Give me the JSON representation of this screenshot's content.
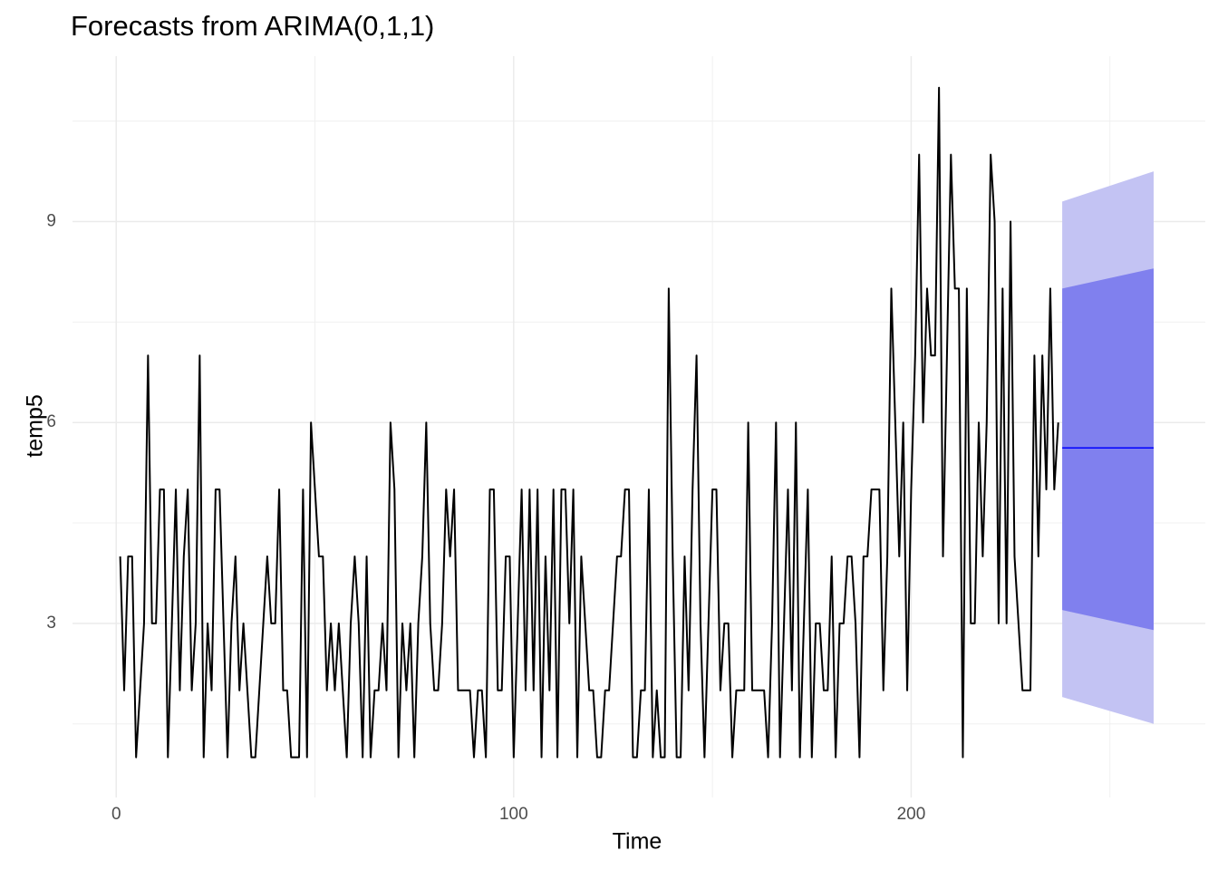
{
  "chart_data": {
    "type": "line",
    "title": "Forecasts from ARIMA(0,1,1)",
    "x_label": "Time",
    "y_label": "temp5",
    "xlim": [
      -11,
      274
    ],
    "ylim": [
      0.4,
      11.47
    ],
    "xticks": [
      0,
      100,
      200
    ],
    "yticks": [
      3,
      6,
      9
    ],
    "minor_xticks": [
      50,
      150,
      250
    ],
    "minor_yticks": [
      1.5,
      4.5,
      7.5,
      10.5
    ],
    "grid": true,
    "series": [
      {
        "color": "#000000",
        "x": [
          1,
          2,
          3,
          4,
          5,
          6,
          7,
          8,
          9,
          10,
          11,
          12,
          13,
          14,
          15,
          16,
          17,
          18,
          19,
          20,
          21,
          22,
          23,
          24,
          25,
          26,
          27,
          28,
          29,
          30,
          31,
          32,
          33,
          34,
          35,
          36,
          37,
          38,
          39,
          40,
          41,
          42,
          43,
          44,
          45,
          46,
          47,
          48,
          49,
          50,
          51,
          52,
          53,
          54,
          55,
          56,
          57,
          58,
          59,
          60,
          61,
          62,
          63,
          64,
          65,
          66,
          67,
          68,
          69,
          70,
          71,
          72,
          73,
          74,
          75,
          76,
          77,
          78,
          79,
          80,
          81,
          82,
          83,
          84,
          85,
          86,
          87,
          88,
          89,
          90,
          91,
          92,
          93,
          94,
          95,
          96,
          97,
          98,
          99,
          100,
          101,
          102,
          103,
          104,
          105,
          106,
          107,
          108,
          109,
          110,
          111,
          112,
          113,
          114,
          115,
          116,
          117,
          118,
          119,
          120,
          121,
          122,
          123,
          124,
          125,
          126,
          127,
          128,
          129,
          130,
          131,
          132,
          133,
          134,
          135,
          136,
          137,
          138,
          139,
          140,
          141,
          142,
          143,
          144,
          145,
          146,
          147,
          148,
          149,
          150,
          151,
          152,
          153,
          154,
          155,
          156,
          157,
          158,
          159,
          160,
          161,
          162,
          163,
          164,
          165,
          166,
          167,
          168,
          169,
          170,
          171,
          172,
          173,
          174,
          175,
          176,
          177,
          178,
          179,
          180,
          181,
          182,
          183,
          184,
          185,
          186,
          187,
          188,
          189,
          190,
          191,
          192,
          193,
          194,
          195,
          196,
          197,
          198,
          199,
          200,
          201,
          202,
          203,
          204,
          205,
          206,
          207,
          208,
          209,
          210,
          211,
          212,
          213,
          214,
          215,
          216,
          217,
          218,
          219,
          220,
          221,
          222,
          223,
          224,
          225,
          226,
          227,
          228,
          229,
          230,
          231,
          232,
          233,
          234,
          235,
          236,
          237
        ],
        "values": [
          4,
          2,
          4,
          4,
          1,
          2,
          3,
          7,
          3,
          3,
          5,
          5,
          1,
          3,
          5,
          2,
          4,
          5,
          2,
          3,
          7,
          1,
          3,
          2,
          5,
          5,
          3,
          1,
          3,
          4,
          2,
          3,
          2,
          1,
          1,
          2,
          3,
          4,
          3,
          3,
          5,
          2,
          2,
          1,
          1,
          1,
          5,
          1,
          6,
          5,
          4,
          4,
          2,
          3,
          2,
          3,
          2,
          1,
          3,
          4,
          3,
          1,
          4,
          1,
          2,
          2,
          3,
          2,
          6,
          5,
          1,
          3,
          2,
          3,
          1,
          3,
          4,
          6,
          3,
          2,
          2,
          3,
          5,
          4,
          5,
          2,
          2,
          2,
          2,
          1,
          2,
          2,
          1,
          5,
          5,
          2,
          2,
          4,
          4,
          1,
          3,
          5,
          2,
          5,
          2,
          5,
          1,
          4,
          2,
          5,
          1,
          5,
          5,
          3,
          5,
          1,
          4,
          3,
          2,
          2,
          1,
          1,
          2,
          2,
          3,
          4,
          4,
          5,
          5,
          1,
          1,
          2,
          2,
          5,
          1,
          2,
          1,
          1,
          8,
          4,
          1,
          1,
          4,
          2,
          5,
          7,
          3,
          1,
          3,
          5,
          5,
          2,
          3,
          3,
          1,
          2,
          2,
          2,
          6,
          2,
          2,
          2,
          2,
          1,
          3,
          6,
          1,
          3,
          5,
          2,
          6,
          1,
          3,
          5,
          1,
          3,
          3,
          2,
          2,
          4,
          1,
          3,
          3,
          4,
          4,
          3,
          1,
          4,
          4,
          5,
          5,
          5,
          2,
          4,
          8,
          6,
          4,
          6,
          2,
          5,
          7,
          10,
          6,
          8,
          7,
          7,
          11,
          4,
          7,
          10,
          8,
          8,
          1,
          8,
          3,
          3,
          6,
          4,
          6,
          10,
          9,
          3,
          8,
          3,
          9,
          4,
          3,
          2,
          2,
          2,
          7,
          4,
          7,
          5,
          8,
          5,
          6
        ]
      }
    ],
    "forecast": {
      "x": [
        238,
        261
      ],
      "mean": [
        5.62,
        5.62
      ],
      "mean_color": "#0000ff",
      "lower80": [
        3.2,
        2.9
      ],
      "upper80": [
        8.0,
        8.3
      ],
      "color80": "#8080ee",
      "lower95": [
        1.9,
        1.5
      ],
      "upper95": [
        9.3,
        9.75
      ],
      "color95": "#c3c3f3"
    }
  }
}
